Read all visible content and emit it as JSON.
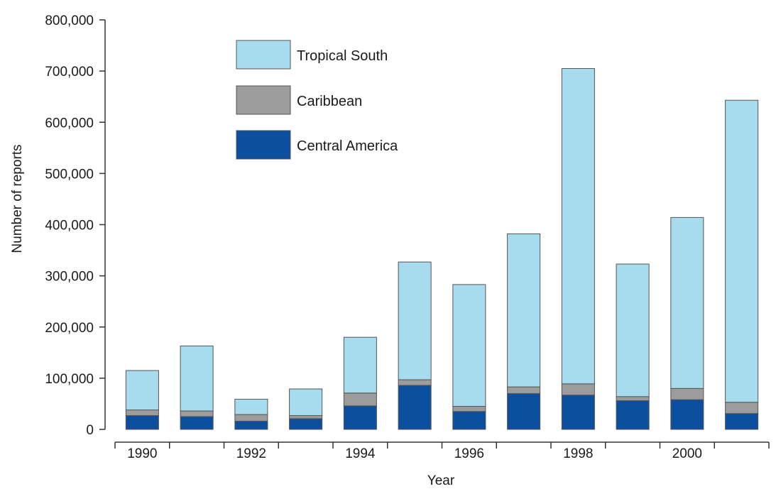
{
  "chart_data": {
    "type": "bar",
    "stacked": true,
    "title": "",
    "xlabel": "Year",
    "ylabel": "Number of reports",
    "ylim": [
      0,
      800000
    ],
    "yticks": [
      "0",
      "100,000",
      "200,000",
      "300,000",
      "400,000",
      "500,000",
      "600,000",
      "700,000",
      "800,000"
    ],
    "yticks_values": [
      0,
      100000,
      200000,
      300000,
      400000,
      500000,
      600000,
      700000,
      800000
    ],
    "categories": [
      "1990",
      "1991",
      "1992",
      "1993",
      "1994",
      "1995",
      "1996",
      "1997",
      "1998",
      "1999",
      "2000",
      "2001"
    ],
    "xtick_labels": [
      "1990",
      "",
      "1992",
      "",
      "1994",
      "",
      "1996",
      "",
      "1998",
      "",
      "2000",
      ""
    ],
    "legend_position": "top-left",
    "grid": false,
    "series": [
      {
        "name": "Central America",
        "color": "#0b4f9e",
        "values": [
          27000,
          25000,
          16000,
          21000,
          46000,
          86000,
          35000,
          70000,
          67000,
          56000,
          58000,
          31000
        ]
      },
      {
        "name": "Caribbean",
        "color": "#9c9c9c",
        "values": [
          11000,
          11000,
          13000,
          6000,
          25000,
          11000,
          10000,
          13000,
          22000,
          8000,
          22000,
          22000
        ]
      },
      {
        "name": "Tropical South",
        "color": "#a6dced",
        "values": [
          77000,
          127000,
          30000,
          52000,
          109000,
          230000,
          238000,
          299000,
          616000,
          259000,
          334000,
          590000
        ]
      }
    ],
    "legend_order": [
      "Tropical South",
      "Caribbean",
      "Central America"
    ]
  }
}
